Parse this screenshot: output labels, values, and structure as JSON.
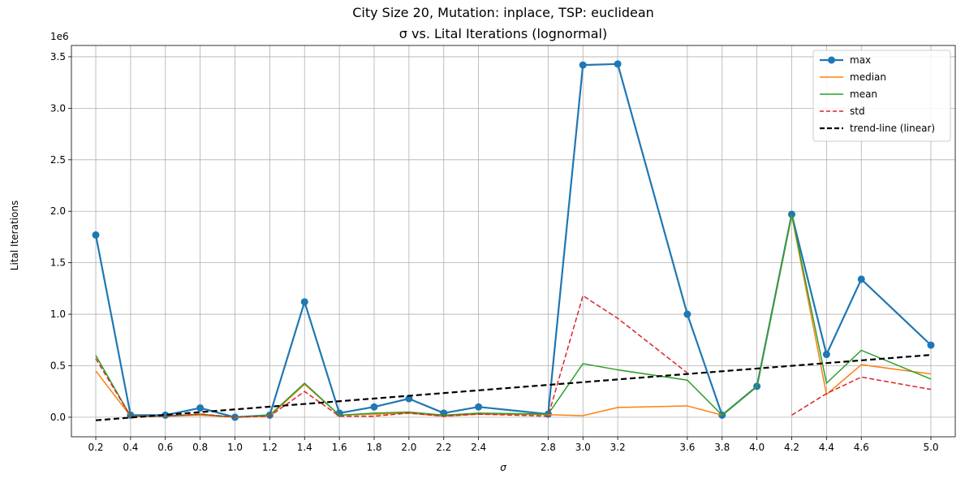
{
  "chart_data": {
    "type": "line",
    "title": "City Size 20, Mutation: inplace, TSP: euclidean",
    "subtitle": "σ vs. Lital Iterations (lognormal)",
    "xlabel": "σ",
    "ylabel": "Lital Iterations",
    "y_offset_label": "1e6",
    "xlim": [
      0.06,
      5.14
    ],
    "ylim": [
      -0.19,
      3.61
    ],
    "y_scale_factor": 1000000,
    "grid": true,
    "legend_position": "top-right",
    "x": [
      0.2,
      0.4,
      0.6,
      0.8,
      1.0,
      1.2,
      1.4,
      1.6,
      1.8,
      2.0,
      2.2,
      2.4,
      2.8,
      3.0,
      3.2,
      3.6,
      3.8,
      4.0,
      4.2,
      4.4,
      4.6,
      5.0
    ],
    "xticks": [
      "0.2",
      "0.4",
      "0.6",
      "0.8",
      "1.0",
      "1.2",
      "1.4",
      "1.6",
      "1.8",
      "2.0",
      "2.2",
      "2.4",
      "2.8",
      "3.0",
      "3.2",
      "3.6",
      "3.8",
      "4.0",
      "4.2",
      "4.4",
      "4.6",
      "5.0"
    ],
    "yticks": [
      {
        "value": 0.0,
        "label": "0.0"
      },
      {
        "value": 0.5,
        "label": "0.5"
      },
      {
        "value": 1.0,
        "label": "1.0"
      },
      {
        "value": 1.5,
        "label": "1.5"
      },
      {
        "value": 2.0,
        "label": "2.0"
      },
      {
        "value": 2.5,
        "label": "2.5"
      },
      {
        "value": 3.0,
        "label": "3.0"
      },
      {
        "value": 3.5,
        "label": "3.5"
      }
    ],
    "series": [
      {
        "name": "max",
        "color": "#1f77b4",
        "style": "solid-marker",
        "values": [
          1.77,
          0.02,
          0.02,
          0.09,
          0.0,
          0.02,
          1.12,
          0.04,
          0.1,
          0.18,
          0.04,
          0.1,
          0.03,
          3.42,
          3.43,
          1.0,
          0.02,
          0.3,
          1.97,
          0.61,
          1.34,
          0.7
        ]
      },
      {
        "name": "median",
        "color": "#ff7f0e",
        "style": "solid",
        "values": [
          0.45,
          0.01,
          0.01,
          0.02,
          0.0,
          0.01,
          0.32,
          0.02,
          0.03,
          0.04,
          0.01,
          0.03,
          0.025,
          0.015,
          0.095,
          0.11,
          0.02,
          0.3,
          1.96,
          0.22,
          0.51,
          0.42
        ]
      },
      {
        "name": "mean",
        "color": "#2ca02c",
        "style": "solid",
        "values": [
          0.6,
          0.01,
          0.01,
          0.03,
          0.0,
          0.02,
          0.33,
          0.02,
          0.04,
          0.05,
          0.02,
          0.04,
          0.03,
          0.52,
          0.46,
          0.36,
          0.02,
          0.3,
          1.97,
          0.33,
          0.65,
          0.37
        ]
      },
      {
        "name": "std",
        "color": "#d62728",
        "style": "dashed",
        "values": [
          0.57,
          0.01,
          0.01,
          0.03,
          0.0,
          0.01,
          0.25,
          0.01,
          0.01,
          0.04,
          0.01,
          0.03,
          0.01,
          1.18,
          0.96,
          0.43,
          null,
          null,
          0.02,
          0.23,
          0.39,
          0.27
        ]
      },
      {
        "name": "trend-line (linear)",
        "color": "#000000",
        "style": "dashed-thick",
        "values": [
          -0.03,
          0.605
        ],
        "x": [
          0.2,
          5.0
        ]
      }
    ]
  }
}
